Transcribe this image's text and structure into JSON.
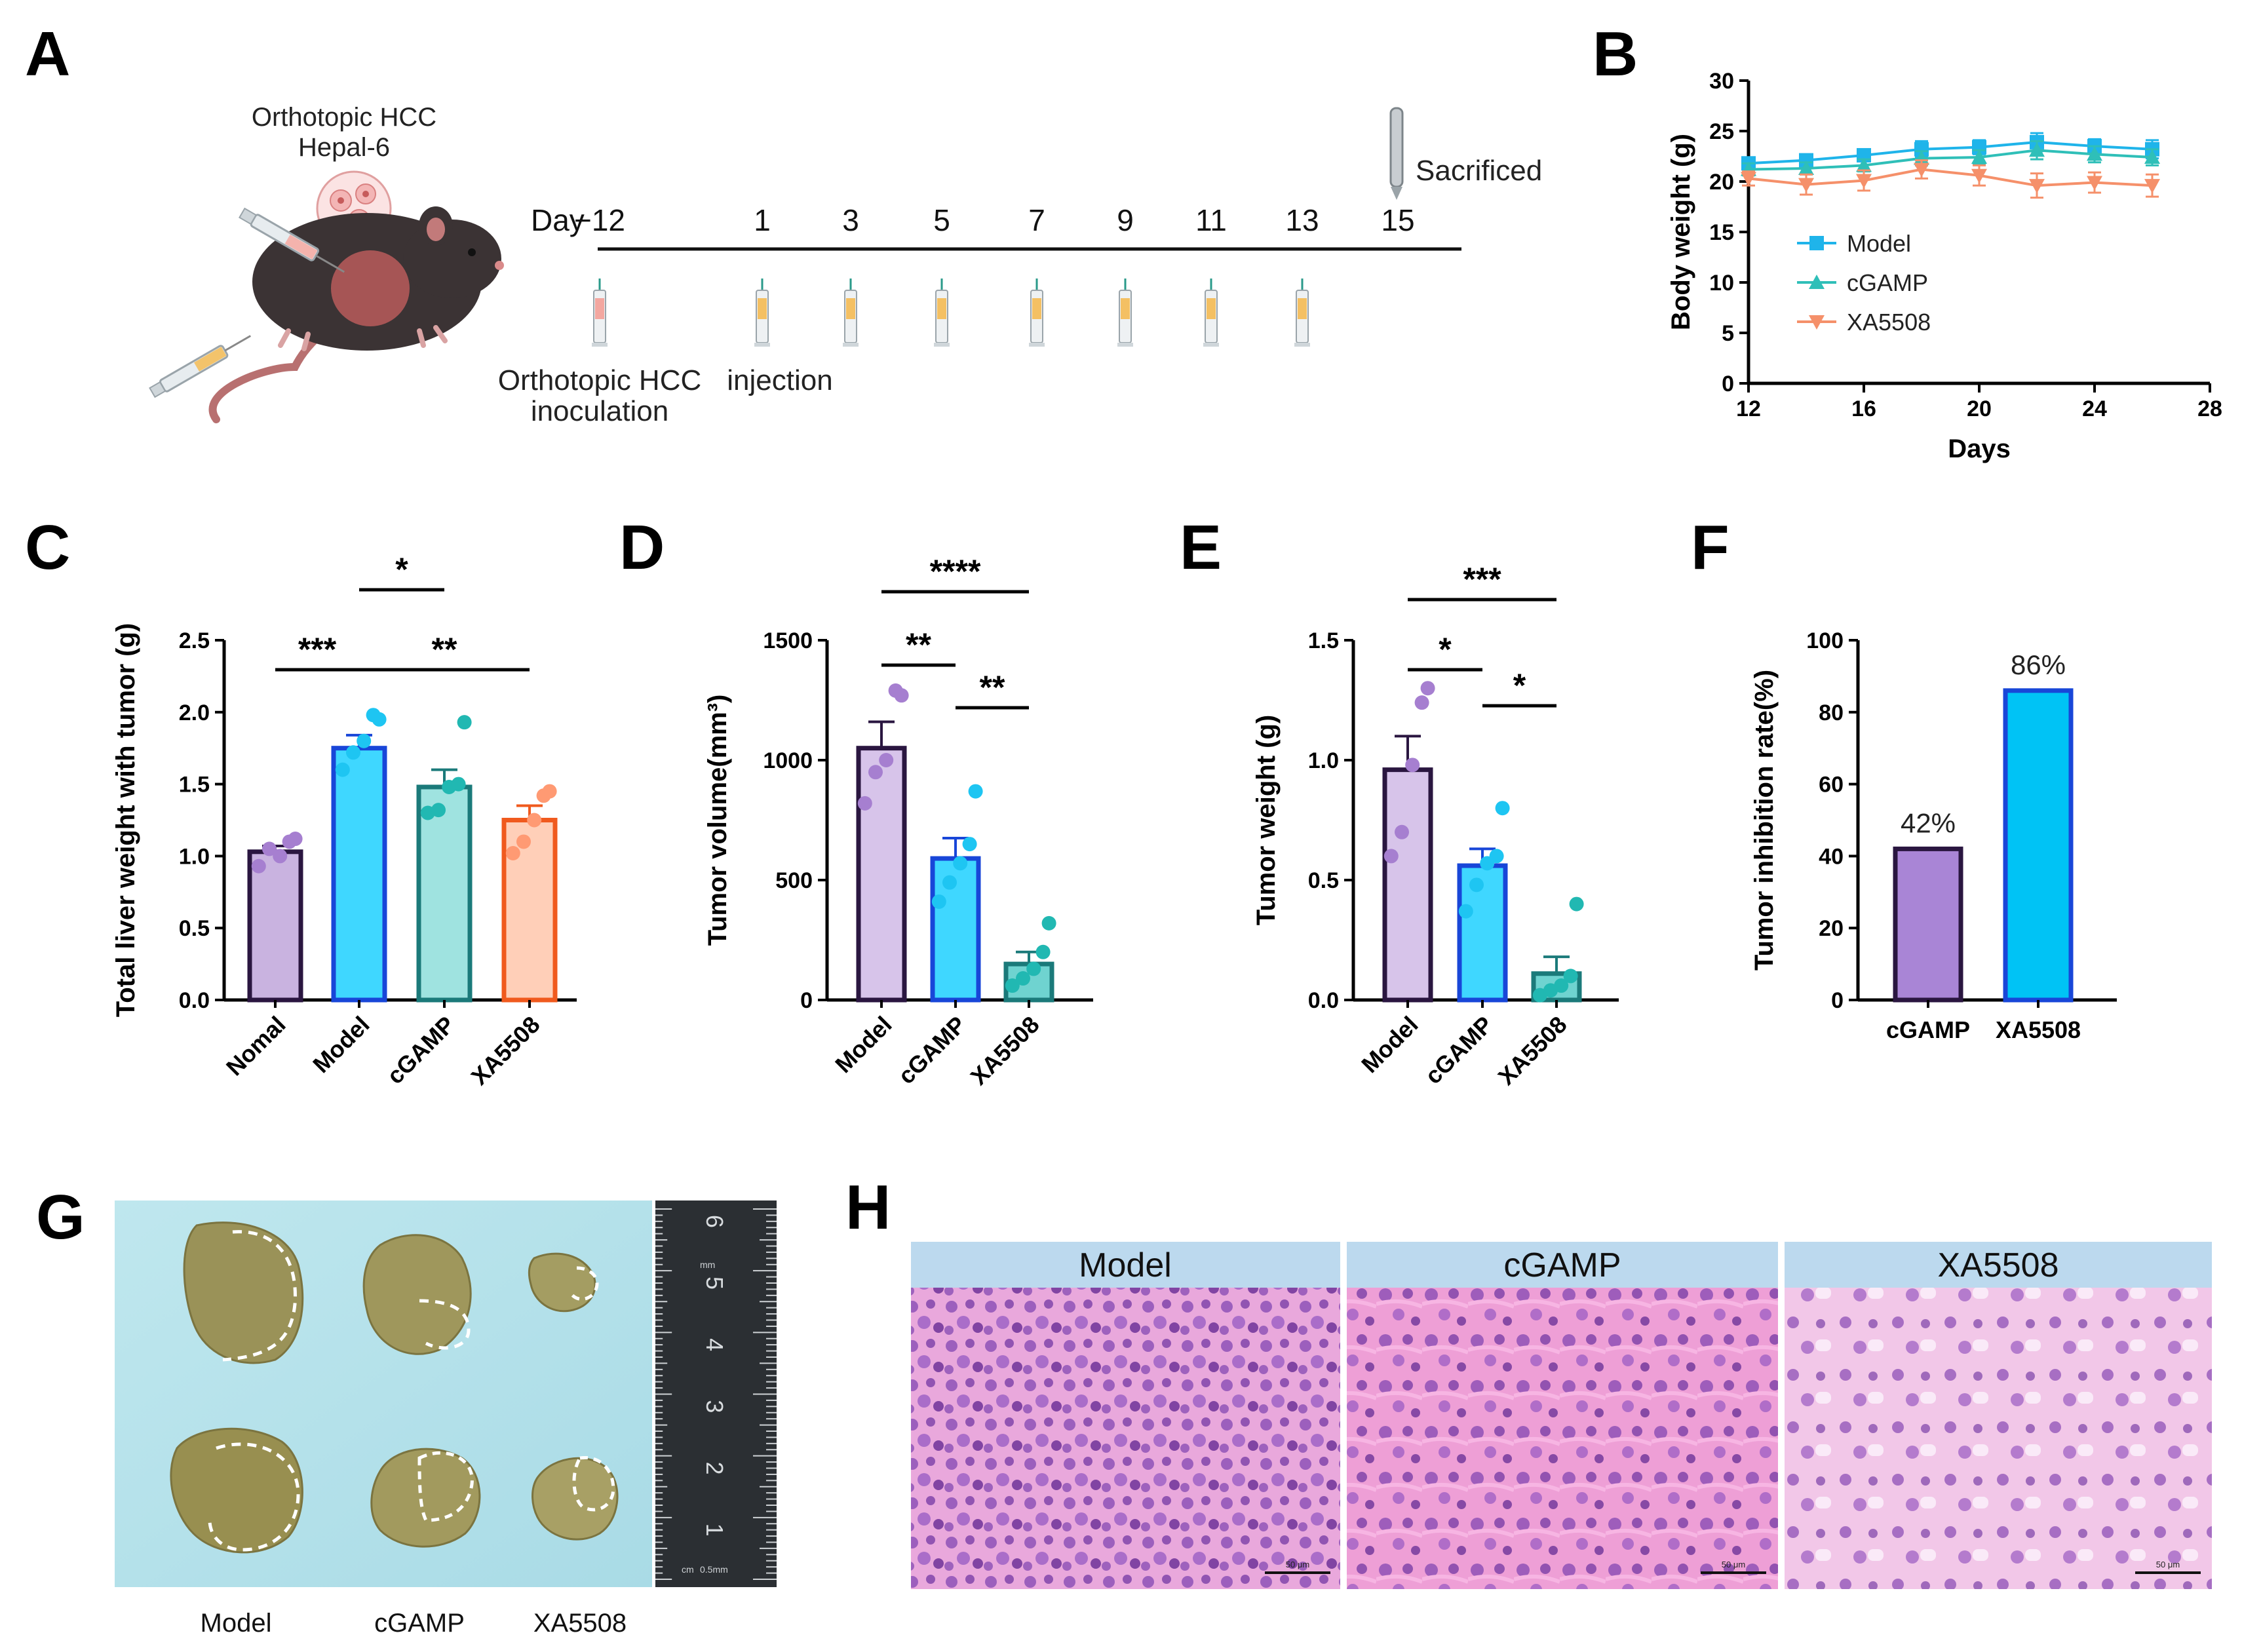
{
  "figure": {
    "panels": [
      "A",
      "B",
      "C",
      "D",
      "E",
      "F",
      "G",
      "H"
    ]
  },
  "panel_a": {
    "model_label_line1": "Orthotopic HCC",
    "model_label_line2": "Hepal-6",
    "day_prefix": "Day",
    "days": [
      "−12",
      "1",
      "3",
      "5",
      "7",
      "9",
      "11",
      "13",
      "15"
    ],
    "sacrificed": "Sacrificed",
    "inoculation_line1": "Orthotopic HCC",
    "inoculation_line2": "inoculation",
    "injection": "injection",
    "icons": [
      "mouse-icon",
      "syringe-icon",
      "tumor-cells-icon",
      "scalpel-icon"
    ]
  },
  "colors": {
    "nomal": "#c9b3e0",
    "nomal_dot": "#a67fd0",
    "model_purple": "#d7c4ea",
    "model_cyan": "#3fd7ff",
    "cgamp_teal": "#9fe3e0",
    "cgamp_blue": "#3fd7ff",
    "xa_orange": "#ffcfb8",
    "xa_teal": "#6fd3d0",
    "dark_purple": "#2a1640",
    "dark_blue": "#1846d8",
    "dark_teal": "#1b7a7a",
    "orange_edge": "#f05a1e",
    "line_model": "#1fb4ea",
    "line_cgamp": "#2fbfb8",
    "line_xa": "#f5906a"
  },
  "chart_data": [
    {
      "id": "B",
      "type": "line",
      "xlabel": "Days",
      "ylabel": "Body weight (g)",
      "xlim": [
        12,
        28
      ],
      "ylim": [
        0,
        30
      ],
      "xticks": [
        12,
        16,
        20,
        24,
        28
      ],
      "yticks": [
        0,
        5,
        10,
        15,
        20,
        25,
        30
      ],
      "legend_position": "middle-left",
      "series": [
        {
          "name": "Model",
          "marker": "square",
          "x": [
            12,
            14,
            16,
            18,
            20,
            22,
            24,
            26
          ],
          "y": [
            21.8,
            22.1,
            22.6,
            23.2,
            23.4,
            23.9,
            23.5,
            23.2
          ],
          "err": [
            0.6,
            0.6,
            0.5,
            0.8,
            0.7,
            0.9,
            0.7,
            0.9
          ]
        },
        {
          "name": "cGAMP",
          "marker": "triangle-up",
          "x": [
            12,
            14,
            16,
            18,
            20,
            22,
            24,
            26
          ],
          "y": [
            21.2,
            21.3,
            21.6,
            22.3,
            22.4,
            23.1,
            22.7,
            22.4
          ],
          "err": [
            0.6,
            0.6,
            0.6,
            0.7,
            0.7,
            0.9,
            0.8,
            0.8
          ]
        },
        {
          "name": "XA5508",
          "marker": "triangle-down",
          "x": [
            12,
            14,
            16,
            18,
            20,
            22,
            24,
            26
          ],
          "y": [
            20.3,
            19.7,
            20.1,
            21.2,
            20.6,
            19.6,
            19.9,
            19.6
          ],
          "err": [
            0.7,
            1.0,
            1.0,
            0.9,
            1.0,
            1.2,
            1.0,
            1.1
          ]
        }
      ]
    },
    {
      "id": "C",
      "type": "bar",
      "ylabel": "Total liver weight with tumor (g)",
      "ylim": [
        0,
        2.5
      ],
      "yticks": [
        "0.0",
        "0.5",
        "1.0",
        "1.5",
        "2.0",
        "2.5"
      ],
      "categories": [
        "Nomal",
        "Model",
        "cGAMP",
        "XA5508"
      ],
      "values": [
        1.03,
        1.75,
        1.48,
        1.25
      ],
      "sem": [
        0.04,
        0.09,
        0.12,
        0.1
      ],
      "points": [
        [
          0.93,
          1.05,
          1.0,
          1.1,
          1.12
        ],
        [
          1.6,
          1.72,
          1.8,
          1.98,
          1.95
        ],
        [
          1.3,
          1.32,
          1.48,
          1.5,
          1.93
        ],
        [
          1.02,
          1.1,
          1.25,
          1.42,
          1.45
        ]
      ],
      "significance": [
        {
          "label": "*",
          "from": "Model",
          "to": "cGAMP",
          "level": 1
        },
        {
          "label": "***",
          "from": "Nomal",
          "to": "Model",
          "level": 0
        },
        {
          "label": "**",
          "from": "Model",
          "to": "XA5508",
          "level": 0
        }
      ]
    },
    {
      "id": "D",
      "type": "bar",
      "ylabel": "Tumor volume(mm³)",
      "ylim": [
        0,
        1500
      ],
      "yticks": [
        "0",
        "500",
        "1000",
        "1500"
      ],
      "categories": [
        "Model",
        "cGAMP",
        "XA5508"
      ],
      "values": [
        1050,
        590,
        150
      ],
      "sem": [
        110,
        85,
        50
      ],
      "points": [
        [
          820,
          950,
          1000,
          1290,
          1270
        ],
        [
          410,
          490,
          570,
          650,
          870
        ],
        [
          60,
          90,
          130,
          200,
          320
        ]
      ],
      "significance": [
        {
          "label": "****",
          "from": "Model",
          "to": "XA5508",
          "level": 1
        },
        {
          "label": "**",
          "from": "Model",
          "to": "cGAMP",
          "level": 0
        },
        {
          "label": "**",
          "from": "cGAMP",
          "to": "XA5508",
          "level": 0
        }
      ]
    },
    {
      "id": "E",
      "type": "bar",
      "ylabel": "Tumor weight (g)",
      "ylim": [
        0,
        1.5
      ],
      "yticks": [
        "0.0",
        "0.5",
        "1.0",
        "1.5"
      ],
      "categories": [
        "Model",
        "cGAMP",
        "XA5508"
      ],
      "values": [
        0.96,
        0.56,
        0.11
      ],
      "sem": [
        0.14,
        0.07,
        0.07
      ],
      "points": [
        [
          0.6,
          0.7,
          0.98,
          1.24,
          1.3
        ],
        [
          0.37,
          0.48,
          0.57,
          0.6,
          0.8
        ],
        [
          0.02,
          0.04,
          0.06,
          0.1,
          0.4
        ]
      ],
      "significance": [
        {
          "label": "***",
          "from": "Model",
          "to": "XA5508",
          "level": 1
        },
        {
          "label": "*",
          "from": "Model",
          "to": "cGAMP",
          "level": 0
        },
        {
          "label": "*",
          "from": "cGAMP",
          "to": "XA5508",
          "level": 0
        }
      ]
    },
    {
      "id": "F",
      "type": "bar",
      "ylabel": "Tumor inhibition rate(%)",
      "ylim": [
        0,
        100
      ],
      "yticks": [
        "0",
        "20",
        "40",
        "60",
        "80",
        "100"
      ],
      "categories": [
        "cGAMP",
        "XA5508"
      ],
      "values": [
        42,
        86
      ],
      "value_labels": [
        "42%",
        "86%"
      ]
    }
  ],
  "panel_g": {
    "labels": [
      "Model",
      "cGAMP",
      "XA5508"
    ],
    "ruler_numbers": [
      "6",
      "5",
      "4",
      "3",
      "2",
      "1"
    ],
    "ruler_units": [
      "cm",
      "mm",
      "0.5mm"
    ]
  },
  "panel_h": {
    "headers": [
      "Model",
      "cGAMP",
      "XA5508"
    ],
    "scale_bar": "50 μm"
  }
}
